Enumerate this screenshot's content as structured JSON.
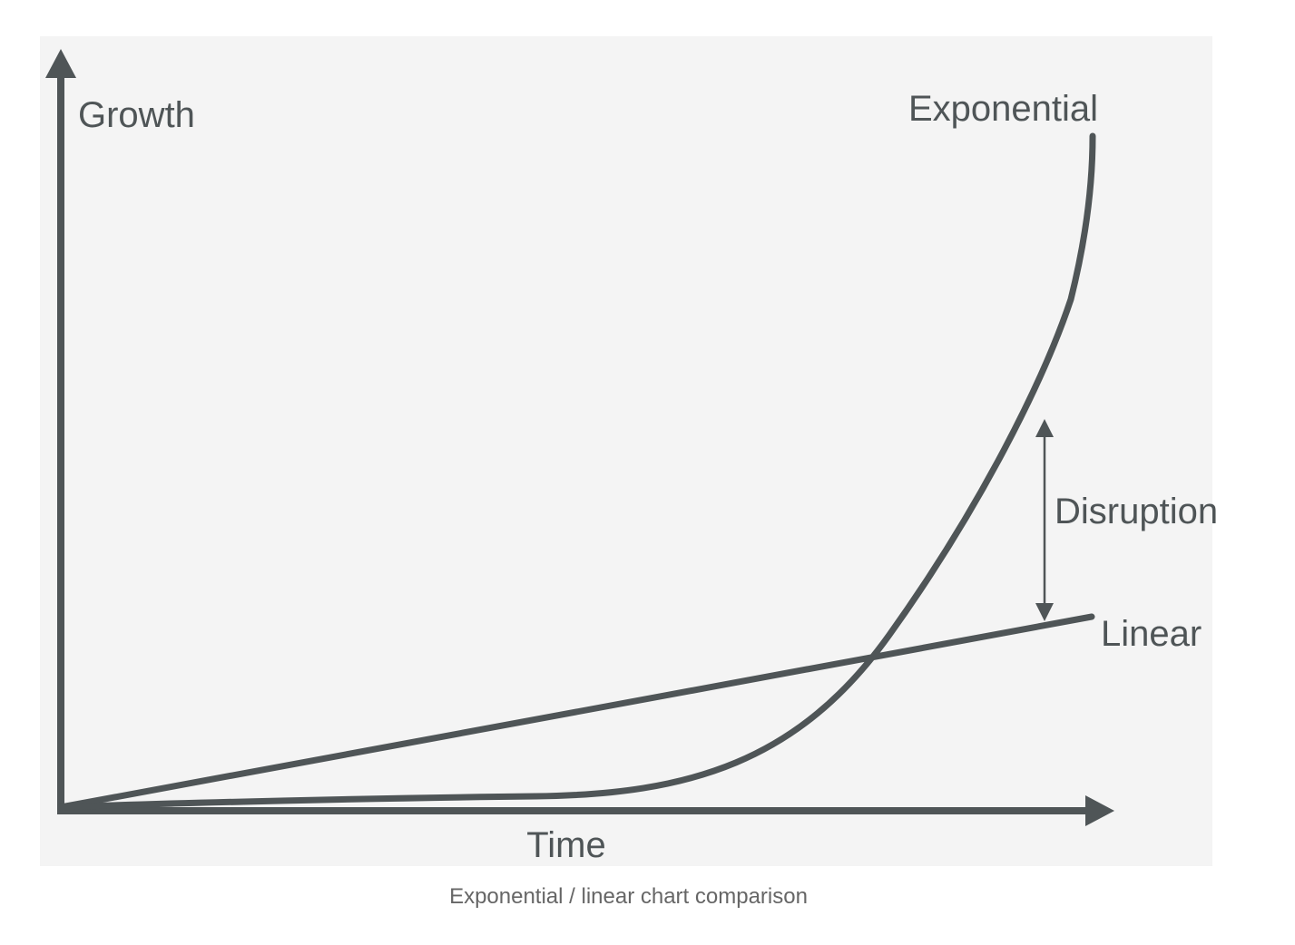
{
  "diagram": {
    "y_axis_label": "Growth",
    "x_axis_label": "Time",
    "exponential_label": "Exponential",
    "linear_label": "Linear",
    "gap_label": "Disruption",
    "line_color": "#4f5557"
  },
  "caption": "Exponential / linear chart comparison"
}
